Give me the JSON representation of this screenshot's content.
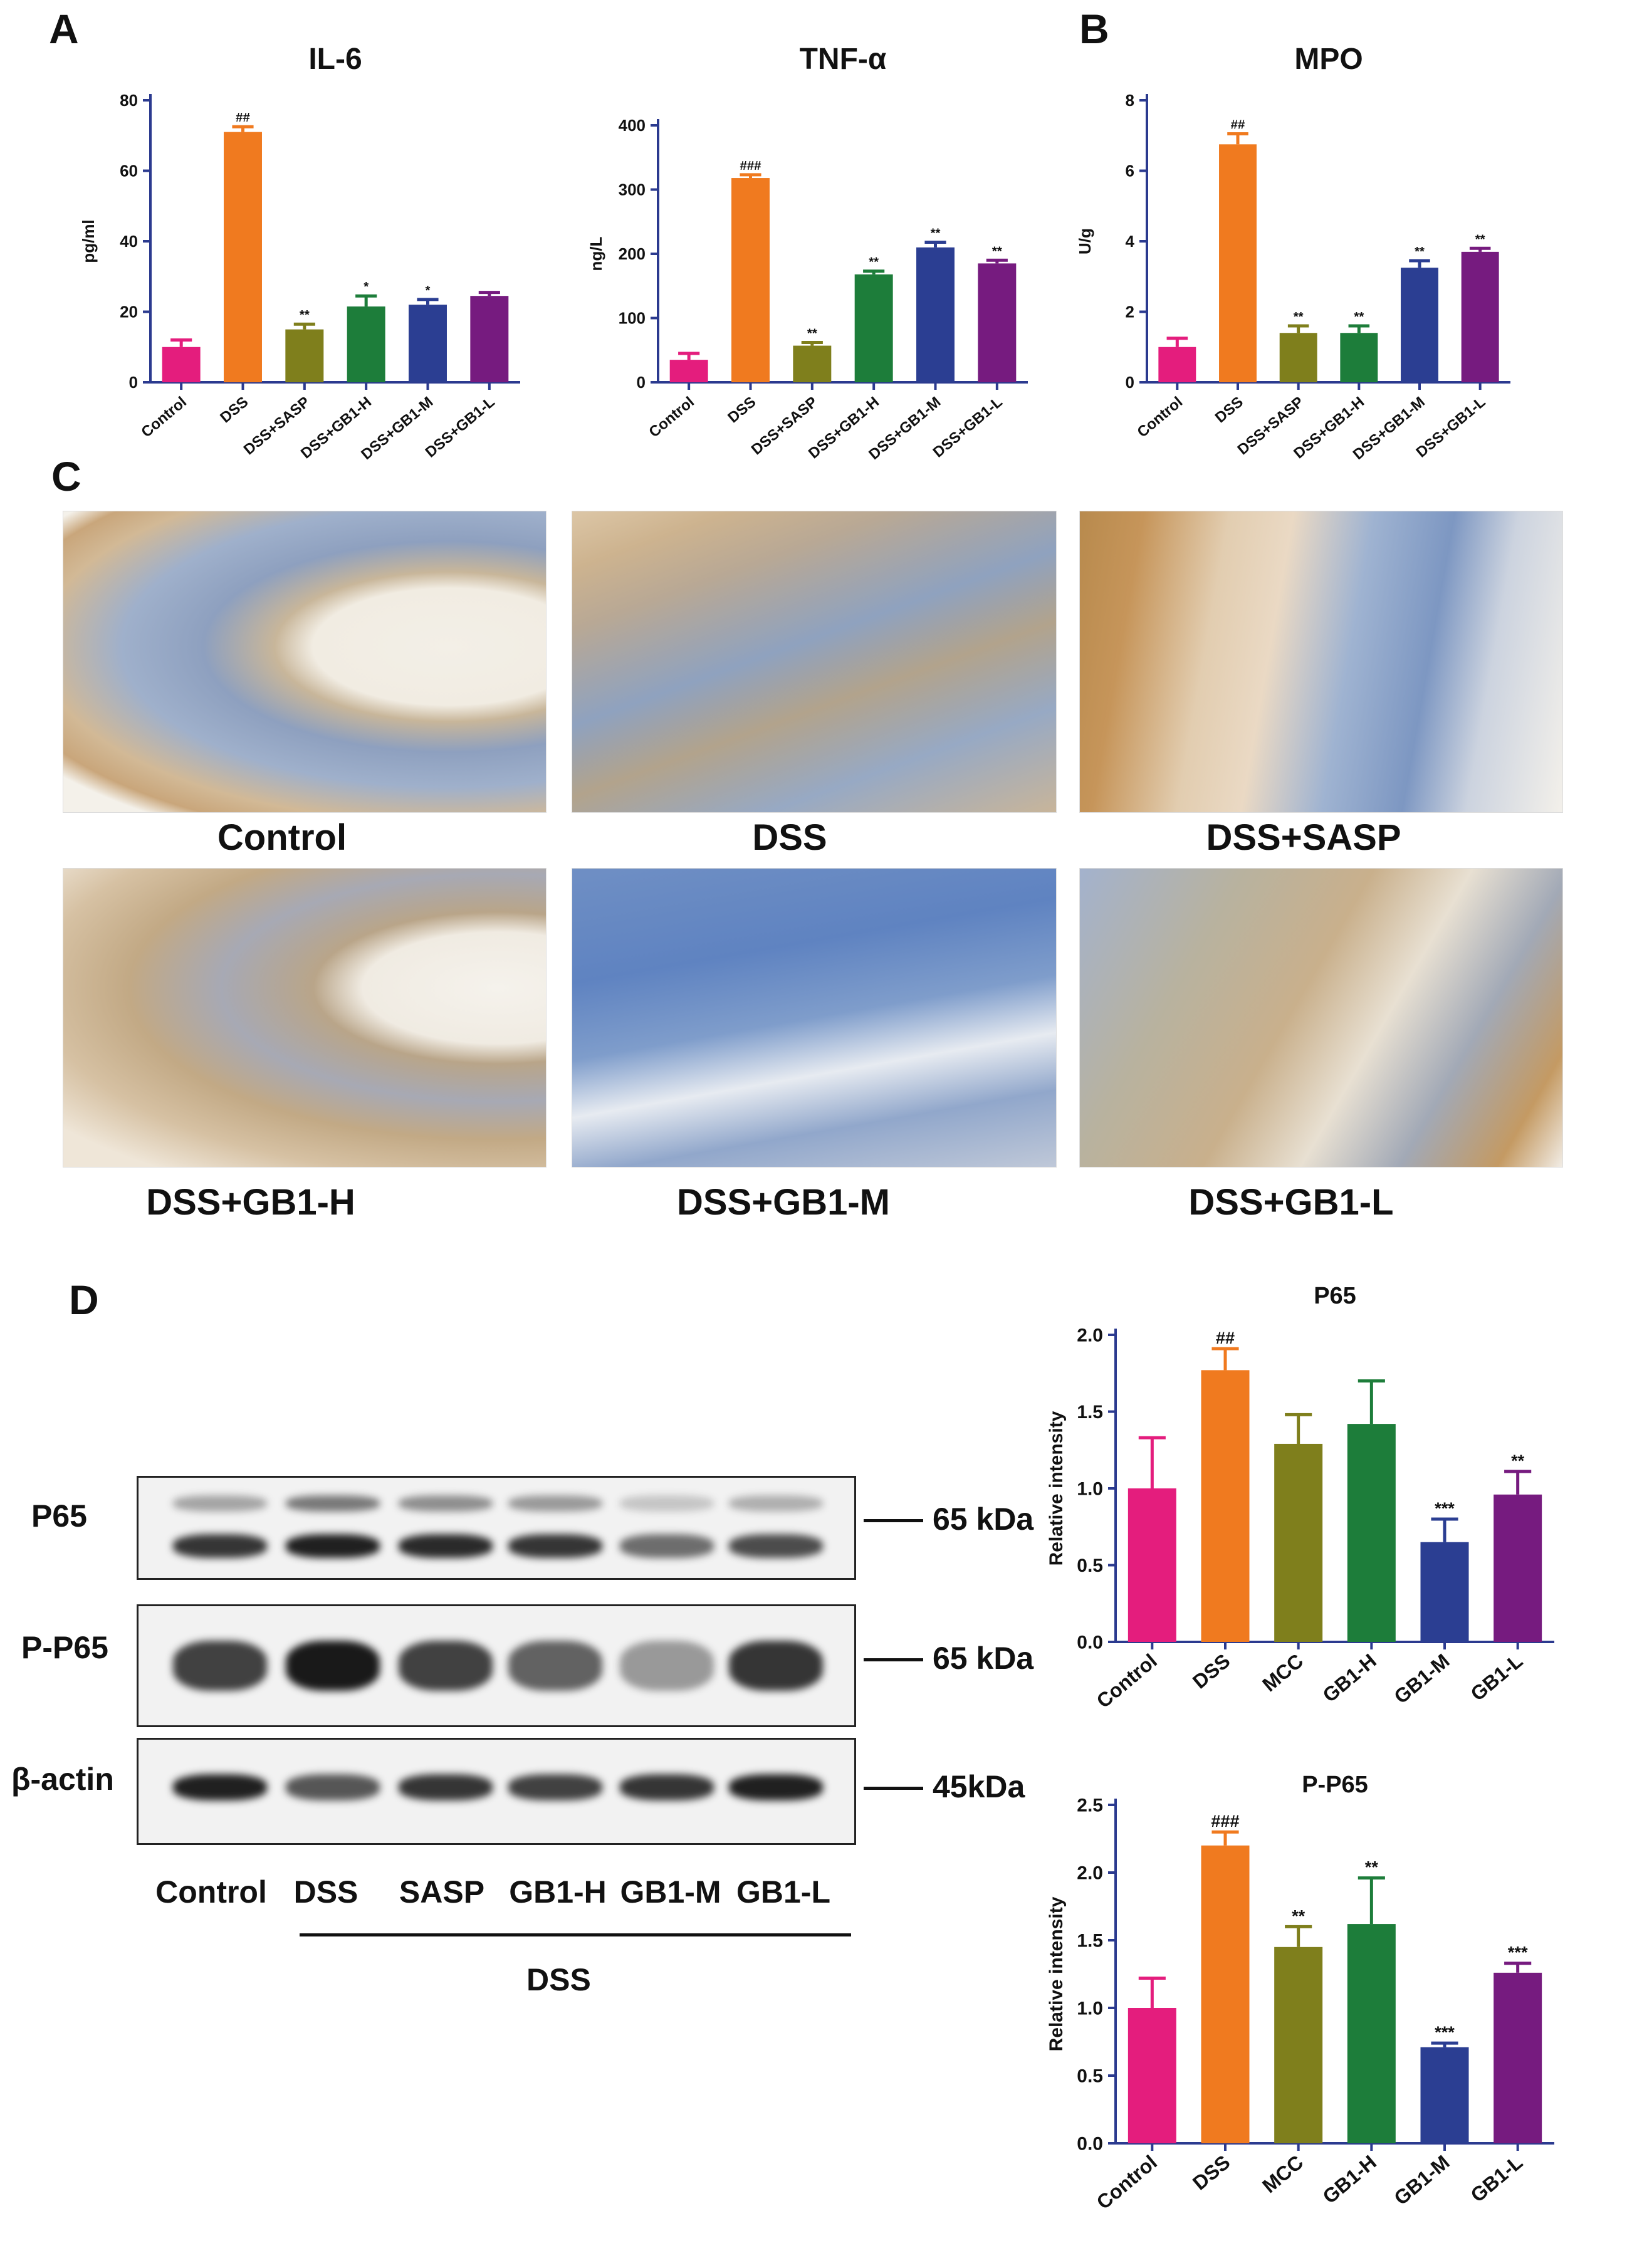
{
  "panel_letters": {
    "a": "A",
    "b": "B",
    "c": "C",
    "d": "D"
  },
  "chart_data": [
    {
      "id": "il6",
      "type": "bar",
      "title": "IL-6",
      "ylabel": "pg/ml",
      "xlabel": "",
      "categories": [
        "Control",
        "DSS",
        "DSS+SASP",
        "DSS+GB1-H",
        "DSS+GB1-M",
        "DSS+GB1-L"
      ],
      "values": [
        10,
        71,
        15,
        21.5,
        22,
        24.5
      ],
      "errors": [
        2,
        1.5,
        1.5,
        3,
        1.5,
        1
      ],
      "annotations": [
        "",
        "##",
        "**",
        "*",
        "*",
        ""
      ],
      "ylim": [
        0,
        80
      ],
      "yticks": [
        0,
        20,
        40,
        60,
        80
      ],
      "grid": false
    },
    {
      "id": "tnf",
      "type": "bar",
      "title": "TNF-α",
      "ylabel": "ng/L",
      "xlabel": "",
      "categories": [
        "Control",
        "DSS",
        "DSS+SASP",
        "DSS+GB1-H",
        "DSS+GB1-M",
        "DSS+GB1-L"
      ],
      "values": [
        35,
        318,
        57,
        168,
        210,
        185
      ],
      "errors": [
        10,
        5,
        5,
        5,
        8,
        5
      ],
      "annotations": [
        "",
        "###",
        "**",
        "**",
        "**",
        "**"
      ],
      "ylim": [
        0,
        400
      ],
      "yticks": [
        0,
        100,
        200,
        300,
        400
      ],
      "grid": false
    },
    {
      "id": "mpo",
      "type": "bar",
      "title": "MPO",
      "ylabel": "U/g",
      "xlabel": "",
      "categories": [
        "Control",
        "DSS",
        "DSS+SASP",
        "DSS+GB1-H",
        "DSS+GB1-M",
        "DSS+GB1-L"
      ],
      "values": [
        1.0,
        6.75,
        1.4,
        1.4,
        3.25,
        3.7
      ],
      "errors": [
        0.25,
        0.3,
        0.2,
        0.2,
        0.2,
        0.1
      ],
      "annotations": [
        "",
        "##",
        "**",
        "**",
        "**",
        "**"
      ],
      "ylim": [
        0,
        8
      ],
      "yticks": [
        0,
        2,
        4,
        6,
        8
      ],
      "grid": false
    },
    {
      "id": "p65",
      "type": "bar",
      "title": "P65",
      "ylabel": "Relative intensity",
      "xlabel": "",
      "categories": [
        "Control",
        "DSS",
        "MCC",
        "GB1-H",
        "GB1-M",
        "GB1-L"
      ],
      "values": [
        1.0,
        1.77,
        1.29,
        1.42,
        0.65,
        0.96
      ],
      "errors": [
        0.33,
        0.14,
        0.19,
        0.28,
        0.15,
        0.15
      ],
      "annotations": [
        "",
        "##",
        "",
        "",
        "***",
        "**"
      ],
      "ylim": [
        0,
        2.0
      ],
      "yticks": [
        "0.0",
        "0.5",
        "1.0",
        "1.5",
        "2.0"
      ],
      "grid": false
    },
    {
      "id": "pp65",
      "type": "bar",
      "title": "P-P65",
      "ylabel": "Relative intensity",
      "xlabel": "",
      "categories": [
        "Control",
        "DSS",
        "MCC",
        "GB1-H",
        "GB1-M",
        "GB1-L"
      ],
      "values": [
        1.0,
        2.2,
        1.45,
        1.62,
        0.71,
        1.26
      ],
      "errors": [
        0.22,
        0.1,
        0.15,
        0.34,
        0.03,
        0.07
      ],
      "annotations": [
        "",
        "###",
        "**",
        "**",
        "***",
        "***"
      ],
      "ylim": [
        0,
        2.5
      ],
      "yticks": [
        "0.0",
        "0.5",
        "1.0",
        "1.5",
        "2.0",
        "2.5"
      ],
      "grid": false
    }
  ],
  "colors": [
    "#e41d7d",
    "#f07a1f",
    "#7f7f1c",
    "#1d7d3a",
    "#2b3e92",
    "#761b7f"
  ],
  "micrographs": {
    "labels": [
      "Control",
      "DSS",
      "DSS+SASP",
      "DSS+GB1-H",
      "DSS+GB1-M",
      "DSS+GB1-L"
    ]
  },
  "western": {
    "rows": [
      {
        "label": "P65",
        "kda": "65 kDa"
      },
      {
        "label": "P-P65",
        "kda": "65 kDa"
      },
      {
        "label": "β-actin",
        "kda": "45kDa"
      }
    ],
    "lanes": [
      "Control",
      "DSS",
      "SASP",
      "GB1-H",
      "GB1-M",
      "GB1-L"
    ],
    "group_label": "DSS"
  }
}
